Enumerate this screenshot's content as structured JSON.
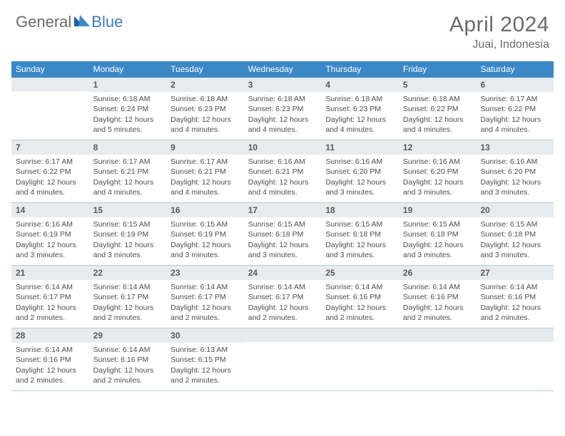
{
  "logo": {
    "general": "General",
    "blue": "Blue"
  },
  "title": "April 2024",
  "location": "Juai, Indonesia",
  "colors": {
    "header_bar": "#3b88c7",
    "daynum_bg": "#e8ebed",
    "divider": "#b9c9d6",
    "text_muted": "#6a6a6a",
    "text_body": "#4e4e4e",
    "brand_blue": "#3b7dc0"
  },
  "weekdays": [
    "Sunday",
    "Monday",
    "Tuesday",
    "Wednesday",
    "Thursday",
    "Friday",
    "Saturday"
  ],
  "weeks": [
    [
      {
        "num": "",
        "lines": []
      },
      {
        "num": "1",
        "lines": [
          "Sunrise: 6:18 AM",
          "Sunset: 6:24 PM",
          "Daylight: 12 hours",
          "and 5 minutes."
        ]
      },
      {
        "num": "2",
        "lines": [
          "Sunrise: 6:18 AM",
          "Sunset: 6:23 PM",
          "Daylight: 12 hours",
          "and 4 minutes."
        ]
      },
      {
        "num": "3",
        "lines": [
          "Sunrise: 6:18 AM",
          "Sunset: 6:23 PM",
          "Daylight: 12 hours",
          "and 4 minutes."
        ]
      },
      {
        "num": "4",
        "lines": [
          "Sunrise: 6:18 AM",
          "Sunset: 6:23 PM",
          "Daylight: 12 hours",
          "and 4 minutes."
        ]
      },
      {
        "num": "5",
        "lines": [
          "Sunrise: 6:18 AM",
          "Sunset: 6:22 PM",
          "Daylight: 12 hours",
          "and 4 minutes."
        ]
      },
      {
        "num": "6",
        "lines": [
          "Sunrise: 6:17 AM",
          "Sunset: 6:22 PM",
          "Daylight: 12 hours",
          "and 4 minutes."
        ]
      }
    ],
    [
      {
        "num": "7",
        "lines": [
          "Sunrise: 6:17 AM",
          "Sunset: 6:22 PM",
          "Daylight: 12 hours",
          "and 4 minutes."
        ]
      },
      {
        "num": "8",
        "lines": [
          "Sunrise: 6:17 AM",
          "Sunset: 6:21 PM",
          "Daylight: 12 hours",
          "and 4 minutes."
        ]
      },
      {
        "num": "9",
        "lines": [
          "Sunrise: 6:17 AM",
          "Sunset: 6:21 PM",
          "Daylight: 12 hours",
          "and 4 minutes."
        ]
      },
      {
        "num": "10",
        "lines": [
          "Sunrise: 6:16 AM",
          "Sunset: 6:21 PM",
          "Daylight: 12 hours",
          "and 4 minutes."
        ]
      },
      {
        "num": "11",
        "lines": [
          "Sunrise: 6:16 AM",
          "Sunset: 6:20 PM",
          "Daylight: 12 hours",
          "and 3 minutes."
        ]
      },
      {
        "num": "12",
        "lines": [
          "Sunrise: 6:16 AM",
          "Sunset: 6:20 PM",
          "Daylight: 12 hours",
          "and 3 minutes."
        ]
      },
      {
        "num": "13",
        "lines": [
          "Sunrise: 6:16 AM",
          "Sunset: 6:20 PM",
          "Daylight: 12 hours",
          "and 3 minutes."
        ]
      }
    ],
    [
      {
        "num": "14",
        "lines": [
          "Sunrise: 6:16 AM",
          "Sunset: 6:19 PM",
          "Daylight: 12 hours",
          "and 3 minutes."
        ]
      },
      {
        "num": "15",
        "lines": [
          "Sunrise: 6:15 AM",
          "Sunset: 6:19 PM",
          "Daylight: 12 hours",
          "and 3 minutes."
        ]
      },
      {
        "num": "16",
        "lines": [
          "Sunrise: 6:15 AM",
          "Sunset: 6:19 PM",
          "Daylight: 12 hours",
          "and 3 minutes."
        ]
      },
      {
        "num": "17",
        "lines": [
          "Sunrise: 6:15 AM",
          "Sunset: 6:18 PM",
          "Daylight: 12 hours",
          "and 3 minutes."
        ]
      },
      {
        "num": "18",
        "lines": [
          "Sunrise: 6:15 AM",
          "Sunset: 6:18 PM",
          "Daylight: 12 hours",
          "and 3 minutes."
        ]
      },
      {
        "num": "19",
        "lines": [
          "Sunrise: 6:15 AM",
          "Sunset: 6:18 PM",
          "Daylight: 12 hours",
          "and 3 minutes."
        ]
      },
      {
        "num": "20",
        "lines": [
          "Sunrise: 6:15 AM",
          "Sunset: 6:18 PM",
          "Daylight: 12 hours",
          "and 3 minutes."
        ]
      }
    ],
    [
      {
        "num": "21",
        "lines": [
          "Sunrise: 6:14 AM",
          "Sunset: 6:17 PM",
          "Daylight: 12 hours",
          "and 2 minutes."
        ]
      },
      {
        "num": "22",
        "lines": [
          "Sunrise: 6:14 AM",
          "Sunset: 6:17 PM",
          "Daylight: 12 hours",
          "and 2 minutes."
        ]
      },
      {
        "num": "23",
        "lines": [
          "Sunrise: 6:14 AM",
          "Sunset: 6:17 PM",
          "Daylight: 12 hours",
          "and 2 minutes."
        ]
      },
      {
        "num": "24",
        "lines": [
          "Sunrise: 6:14 AM",
          "Sunset: 6:17 PM",
          "Daylight: 12 hours",
          "and 2 minutes."
        ]
      },
      {
        "num": "25",
        "lines": [
          "Sunrise: 6:14 AM",
          "Sunset: 6:16 PM",
          "Daylight: 12 hours",
          "and 2 minutes."
        ]
      },
      {
        "num": "26",
        "lines": [
          "Sunrise: 6:14 AM",
          "Sunset: 6:16 PM",
          "Daylight: 12 hours",
          "and 2 minutes."
        ]
      },
      {
        "num": "27",
        "lines": [
          "Sunrise: 6:14 AM",
          "Sunset: 6:16 PM",
          "Daylight: 12 hours",
          "and 2 minutes."
        ]
      }
    ],
    [
      {
        "num": "28",
        "lines": [
          "Sunrise: 6:14 AM",
          "Sunset: 6:16 PM",
          "Daylight: 12 hours",
          "and 2 minutes."
        ]
      },
      {
        "num": "29",
        "lines": [
          "Sunrise: 6:14 AM",
          "Sunset: 6:16 PM",
          "Daylight: 12 hours",
          "and 2 minutes."
        ]
      },
      {
        "num": "30",
        "lines": [
          "Sunrise: 6:13 AM",
          "Sunset: 6:15 PM",
          "Daylight: 12 hours",
          "and 2 minutes."
        ]
      },
      {
        "num": "",
        "lines": []
      },
      {
        "num": "",
        "lines": []
      },
      {
        "num": "",
        "lines": []
      },
      {
        "num": "",
        "lines": []
      }
    ]
  ]
}
